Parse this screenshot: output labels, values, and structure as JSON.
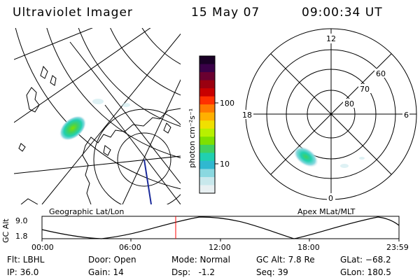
{
  "header": {
    "instrument": "Ultraviolet Imager",
    "date": "15 May 07",
    "time": "09:00:34 UT"
  },
  "colorbar": {
    "label": "photon cm⁻²s⁻¹",
    "ticks": [
      "100",
      "10"
    ],
    "colors": [
      "#1a0026",
      "#3a0048",
      "#6a0030",
      "#9a0010",
      "#c80000",
      "#ff3000",
      "#ff7a00",
      "#ffb000",
      "#f0e000",
      "#b8f000",
      "#7ee000",
      "#40d060",
      "#20d0b0",
      "#30b8d0",
      "#8ad8e0",
      "#c8e8ec",
      "#e8f0f2"
    ]
  },
  "left_panel": {
    "label": "Geographic Lat/Lon"
  },
  "right_panel": {
    "label": "Apex MLat/MLT",
    "mlt_labels": [
      "12",
      "18",
      "6",
      "0"
    ],
    "lat_labels": [
      "60",
      "70",
      "80"
    ]
  },
  "timeline": {
    "ylabel": "GC Alt",
    "y_ticks": [
      "9.0",
      "1.8"
    ],
    "x_ticks": [
      "00:00",
      "06:00",
      "12:00",
      "18:00",
      "23:59"
    ],
    "marker_color": "#ff0000"
  },
  "status": {
    "flt": "Flt: LBHL",
    "ip": "IP: 36.0",
    "door": "Door: Open",
    "gain": "Gain: 14",
    "mode": "Mode: Normal",
    "dsp": "Dsp:   -1.2",
    "gcalt": "GC Alt: 7.8 Re",
    "seq": "Seq: 39",
    "glat": "GLat: −68.2",
    "glon": "GLon: 180.5"
  }
}
